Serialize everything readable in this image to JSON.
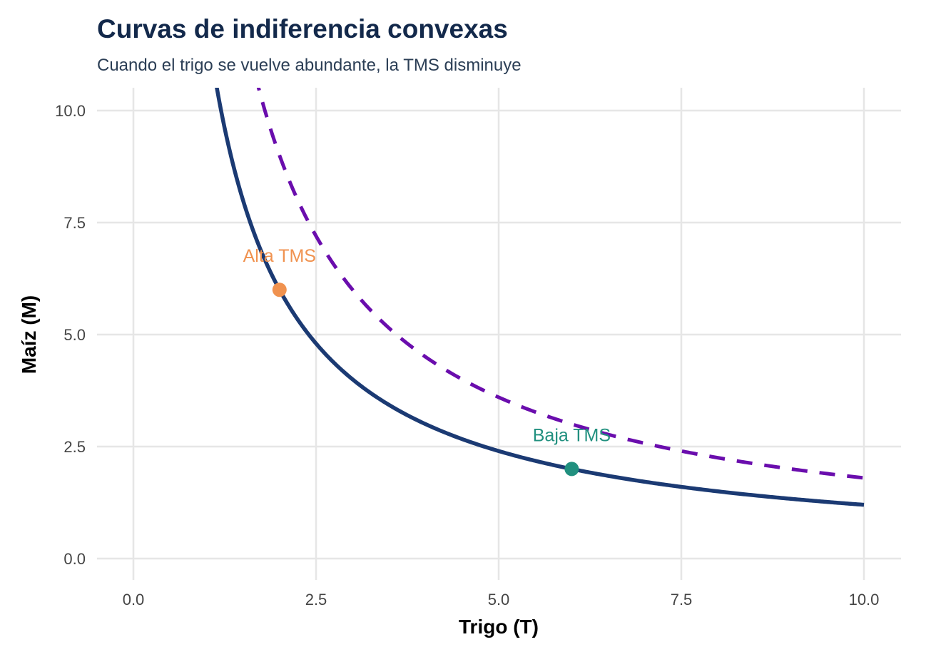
{
  "chart_data": {
    "type": "line",
    "title": "Curvas de indiferencia convexas",
    "subtitle": "Cuando el trigo se vuelve abundante, la TMS disminuye",
    "xlabel": "Trigo (T)",
    "ylabel": "Maíz (M)",
    "xlim": [
      -0.2,
      10.25
    ],
    "ylim": [
      -0.45,
      10.5
    ],
    "x_ticks": [
      "0.0",
      "2.5",
      "5.0",
      "7.5",
      "10.0"
    ],
    "y_ticks": [
      "0.0",
      "2.5",
      "5.0",
      "7.5",
      "10.0"
    ],
    "grid": true,
    "series": [
      {
        "equation": "M = 12 / T",
        "x_start": 1.0,
        "x_end": 10.0,
        "style": "solid",
        "color": "#1b3a73"
      },
      {
        "equation": "M = 18 / T",
        "x_start": 1.5,
        "x_end": 10.0,
        "style": "dashed",
        "color": "#6a0dad"
      }
    ],
    "points": [
      {
        "x": 2,
        "y": 6,
        "label": "Alta TMS",
        "color": "#f0924f"
      },
      {
        "x": 6,
        "y": 2,
        "label": "Baja TMS",
        "color": "#21907f"
      }
    ]
  }
}
